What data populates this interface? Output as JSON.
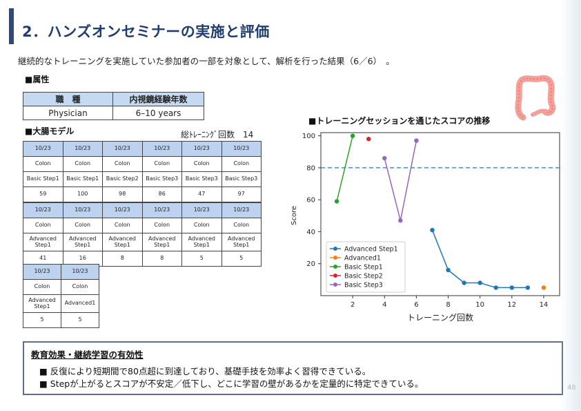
{
  "title": "2．ハンズオンセミナーの実施と評価",
  "lead": "継続的なトレーニングを実施していた参加者の一部を対象として、解析を行った結果（6／6）　。",
  "attributes": {
    "heading": "■属性",
    "headers": [
      "職　種",
      "内視鏡経験年数"
    ],
    "values": [
      "Physician",
      "6–10 years"
    ]
  },
  "model": {
    "heading": "■大腸モデル",
    "training_count_label": "総ﾄﾚｰﾆﾝｸﾞ回数　14",
    "table1": {
      "dates": [
        "10/23",
        "10/23",
        "10/23",
        "10/23",
        "10/23",
        "10/23"
      ],
      "models": [
        "Colon",
        "Colon",
        "Colon",
        "Colon",
        "Colon",
        "Colon"
      ],
      "steps": [
        "Basic Step1",
        "Basic Step1",
        "Basic Step2",
        "Basic Step3",
        "Basic Step3",
        "Basic Step3"
      ],
      "scores": [
        "59",
        "100",
        "98",
        "86",
        "47",
        "97"
      ]
    },
    "table2": {
      "dates": [
        "10/23",
        "10/23",
        "10/23",
        "10/23",
        "10/23",
        "10/23"
      ],
      "models": [
        "Colon",
        "Colon",
        "Colon",
        "Colon",
        "Colon",
        "Colon"
      ],
      "steps": [
        "Advanced Step1",
        "Advanced Step1",
        "Advanced Step1",
        "Advanced Step1",
        "Advanced Step1",
        "Advanced Step1"
      ],
      "scores": [
        "41",
        "16",
        "8",
        "8",
        "5",
        "5"
      ]
    },
    "table3": {
      "dates": [
        "10/23",
        "10/23"
      ],
      "models": [
        "Colon",
        "Colon"
      ],
      "steps": [
        "Advanced Step1",
        "Advanced1"
      ],
      "scores": [
        "5",
        "5"
      ]
    }
  },
  "chart_title": "■トレーニングセッションを通じたスコアの推移",
  "chart_data": {
    "type": "line",
    "xlabel": "トレーニング回数",
    "ylabel": "Score",
    "xlim": [
      0,
      15
    ],
    "ylim": [
      0,
      102
    ],
    "x_ticks": [
      2,
      4,
      6,
      8,
      10,
      12,
      14
    ],
    "y_ticks": [
      20,
      40,
      60,
      80,
      100
    ],
    "reference_line": {
      "y": 80,
      "style": "dashed",
      "color": "#1f77b4"
    },
    "legend_position": "bottom-left",
    "series": [
      {
        "name": "Advanced Step1",
        "color": "#1f77b4",
        "x": [
          7,
          8,
          9,
          10,
          11,
          12,
          13
        ],
        "y": [
          41,
          16,
          8,
          8,
          5,
          5,
          5
        ]
      },
      {
        "name": "Advanced1",
        "color": "#ff7f0e",
        "x": [
          14
        ],
        "y": [
          5
        ]
      },
      {
        "name": "Basic Step1",
        "color": "#2ca02c",
        "x": [
          1,
          2
        ],
        "y": [
          59,
          100
        ]
      },
      {
        "name": "Basic Step2",
        "color": "#d62728",
        "x": [
          3
        ],
        "y": [
          98
        ]
      },
      {
        "name": "Basic Step3",
        "color": "#9467bd",
        "x": [
          4,
          5,
          6
        ],
        "y": [
          86,
          47,
          97
        ]
      }
    ]
  },
  "summary": {
    "title": "教育効果・継続学習の有効性",
    "bullets": [
      "■ 反復により短期間で80点超に到達しており、基礎手技を効率よく習得できている。",
      "■ Stepが上がるとスコアが不安定／低下し、どこに学習の壁があるかを定量的に特定できている。"
    ]
  },
  "page_number": "48",
  "icon": "colon-anatomy-icon"
}
